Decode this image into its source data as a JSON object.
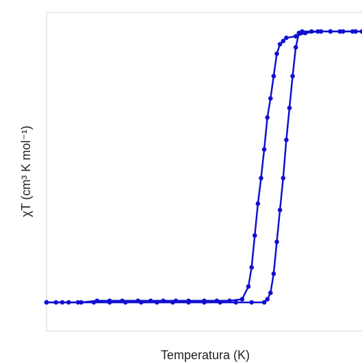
{
  "chart_data": {
    "type": "line",
    "title": "",
    "xlabel": "Temperatura (K)",
    "ylabel": "χT (cm³ K mol⁻¹)",
    "xlim": [
      0,
      100
    ],
    "ylim": [
      0,
      100
    ],
    "grid": false,
    "legend": "none",
    "tick_labels": false,
    "color": "#1010d0",
    "series": [
      {
        "name": "",
        "x": [
          0,
          3,
          7,
          11,
          16,
          20,
          24,
          29,
          33,
          37,
          41,
          45,
          50,
          54,
          58,
          62,
          64,
          65,
          66,
          67,
          68,
          69,
          70,
          71,
          72,
          73,
          74,
          75,
          76,
          79,
          82,
          86,
          90,
          94,
          98,
          100
        ],
        "y": [
          9,
          9,
          9,
          9,
          9.5,
          9.5,
          9.5,
          9.5,
          9.5,
          9.5,
          9.5,
          9.5,
          9.5,
          9.5,
          9.5,
          10,
          14,
          20,
          30,
          40,
          48,
          57,
          67,
          73,
          80,
          87,
          90,
          91,
          92,
          92.5,
          93.5,
          94,
          94,
          94,
          94,
          94
        ]
      },
      {
        "name": "",
        "x": [
          100,
          97,
          93,
          90,
          87,
          84,
          81,
          80,
          79,
          78,
          77,
          76,
          75,
          74,
          73,
          72,
          71,
          70,
          69,
          65,
          60,
          55,
          50,
          45,
          40,
          35,
          30,
          25,
          20,
          15,
          10,
          5,
          0
        ],
        "y": [
          94,
          94,
          94,
          94,
          94,
          94,
          94,
          93.5,
          89,
          80,
          70,
          60,
          48,
          38,
          28,
          18,
          12,
          10,
          9,
          9,
          9,
          9,
          9,
          9,
          9,
          9,
          9,
          9,
          9,
          9,
          9,
          9,
          9
        ]
      }
    ]
  }
}
